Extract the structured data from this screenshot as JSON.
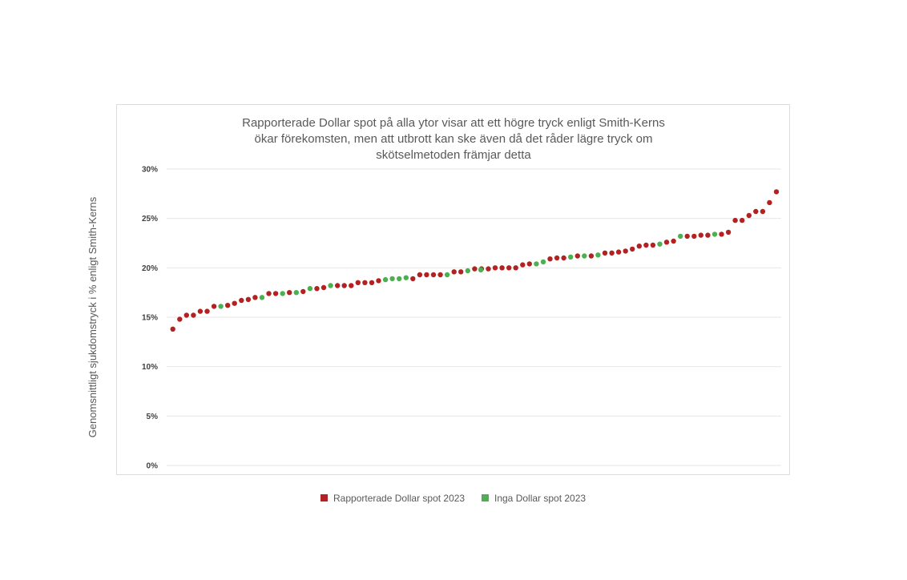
{
  "chart_data": {
    "type": "scatter",
    "title_lines": [
      "Rapporterade Dollar spot på alla ytor visar att ett högre tryck enligt Smith-Kerns",
      "ökar förekomsten, men att utbrott kan ske även då det råder lägre tryck om",
      "skötselmetoden främjar detta"
    ],
    "ylabel": "Genomsnittligt sjukdomstryck i % enligt Smith-Kerns",
    "xlabel": "",
    "ylim": [
      0,
      30
    ],
    "yticks": [
      0,
      5,
      10,
      15,
      20,
      25,
      30
    ],
    "ytick_labels": [
      "0%",
      "5%",
      "10%",
      "15%",
      "20%",
      "25%",
      "30%"
    ],
    "grid": true,
    "legend_position": "bottom",
    "colors": {
      "reported": "#b22222",
      "none": "#4caf50"
    },
    "series": [
      {
        "name": "Rapporterade Dollar spot 2023",
        "key": "reported",
        "points": [
          [
            1,
            13.8
          ],
          [
            2,
            14.8
          ],
          [
            3,
            15.2
          ],
          [
            4,
            15.2
          ],
          [
            5,
            15.6
          ],
          [
            6,
            15.6
          ],
          [
            7,
            16.1
          ],
          [
            9,
            16.2
          ],
          [
            10,
            16.4
          ],
          [
            11,
            16.7
          ],
          [
            12,
            16.8
          ],
          [
            13,
            17.0
          ],
          [
            15,
            17.4
          ],
          [
            16,
            17.4
          ],
          [
            18,
            17.5
          ],
          [
            20,
            17.6
          ],
          [
            22,
            17.9
          ],
          [
            23,
            18.0
          ],
          [
            25,
            18.2
          ],
          [
            26,
            18.2
          ],
          [
            27,
            18.2
          ],
          [
            28,
            18.5
          ],
          [
            29,
            18.5
          ],
          [
            30,
            18.5
          ],
          [
            31,
            18.7
          ],
          [
            36,
            18.9
          ],
          [
            37,
            19.3
          ],
          [
            38,
            19.3
          ],
          [
            39,
            19.3
          ],
          [
            40,
            19.3
          ],
          [
            42,
            19.6
          ],
          [
            43,
            19.6
          ],
          [
            45,
            19.9
          ],
          [
            46,
            19.9
          ],
          [
            47,
            19.9
          ],
          [
            48,
            20.0
          ],
          [
            49,
            20.0
          ],
          [
            50,
            20.0
          ],
          [
            51,
            20.0
          ],
          [
            52,
            20.3
          ],
          [
            53,
            20.4
          ],
          [
            56,
            20.9
          ],
          [
            57,
            21.0
          ],
          [
            58,
            21.0
          ],
          [
            60,
            21.2
          ],
          [
            62,
            21.2
          ],
          [
            64,
            21.5
          ],
          [
            65,
            21.5
          ],
          [
            66,
            21.6
          ],
          [
            67,
            21.7
          ],
          [
            68,
            21.9
          ],
          [
            69,
            22.2
          ],
          [
            70,
            22.3
          ],
          [
            71,
            22.3
          ],
          [
            73,
            22.6
          ],
          [
            74,
            22.7
          ],
          [
            76,
            23.2
          ],
          [
            77,
            23.2
          ],
          [
            78,
            23.3
          ],
          [
            79,
            23.3
          ],
          [
            81,
            23.4
          ],
          [
            82,
            23.6
          ],
          [
            83,
            24.8
          ],
          [
            84,
            24.8
          ],
          [
            85,
            25.3
          ],
          [
            86,
            25.7
          ],
          [
            87,
            25.7
          ],
          [
            88,
            26.6
          ],
          [
            89,
            27.7
          ]
        ]
      },
      {
        "name": "Inga Dollar spot 2023",
        "key": "none",
        "points": [
          [
            8,
            16.1
          ],
          [
            14,
            17.0
          ],
          [
            17,
            17.4
          ],
          [
            19,
            17.5
          ],
          [
            21,
            17.9
          ],
          [
            24,
            18.2
          ],
          [
            32,
            18.8
          ],
          [
            33,
            18.9
          ],
          [
            34,
            18.9
          ],
          [
            35,
            19.0
          ],
          [
            41,
            19.3
          ],
          [
            44,
            19.7
          ],
          [
            45.9,
            19.8
          ],
          [
            54,
            20.4
          ],
          [
            55,
            20.6
          ],
          [
            59,
            21.1
          ],
          [
            61,
            21.2
          ],
          [
            63,
            21.3
          ],
          [
            72,
            22.4
          ],
          [
            75,
            23.2
          ],
          [
            80,
            23.4
          ]
        ]
      }
    ]
  }
}
